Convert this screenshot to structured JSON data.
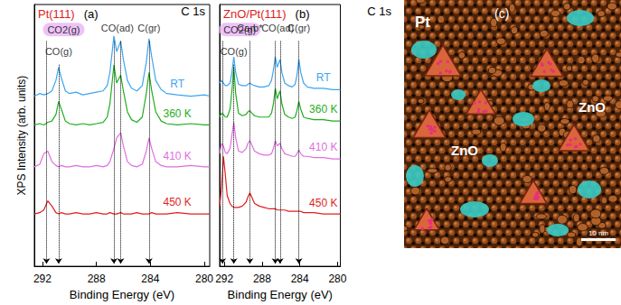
{
  "chart_data": [
    {
      "type": "line",
      "title": "Pt(111)",
      "panel_label": "(a)",
      "corner_label": "C 1s",
      "xlabel": "Binding Energy (eV)",
      "ylabel": "XPS Intensity (arb. units)",
      "xlim": [
        292.6,
        279.6
      ],
      "xticks": [
        292,
        288,
        284,
        280
      ],
      "ylim": [
        0,
        100
      ],
      "tick_labels": "x",
      "grid": false,
      "x": [
        292.6,
        292.2,
        291.9,
        291.6,
        291.3,
        291.0,
        290.8,
        290.6,
        290.3,
        290.0,
        289.5,
        289.0,
        288.5,
        288.0,
        287.5,
        287.2,
        287.0,
        286.7,
        286.5,
        286.2,
        286.0,
        285.7,
        285.4,
        285.0,
        284.6,
        284.3,
        284.1,
        283.9,
        283.6,
        283.2,
        282.8,
        282.0,
        281.0,
        280.0,
        279.6
      ],
      "series": [
        {
          "name": "RT",
          "color": "#3da5f0",
          "values": [
            65,
            66,
            65.5,
            66,
            67,
            71,
            76,
            72,
            67,
            66,
            66.5,
            65.5,
            66,
            66.5,
            67,
            69,
            74,
            88,
            82,
            86,
            79,
            71,
            68,
            67,
            69,
            78,
            87,
            80,
            71,
            67.5,
            66,
            65.5,
            65,
            65.5,
            65
          ]
        },
        {
          "name": "360 K",
          "color": "#1fae1f",
          "values": [
            54,
            54.5,
            54,
            55,
            55.5,
            58,
            63,
            60,
            55.5,
            54.5,
            54,
            54.5,
            54,
            54.5,
            55,
            57,
            62,
            77,
            70,
            73,
            67,
            59,
            56,
            55,
            57,
            66,
            74,
            67,
            59,
            55.5,
            54.5,
            54,
            54.5,
            54,
            54
          ]
        },
        {
          "name": "410 K",
          "color": "#e06ee0",
          "values": [
            38,
            39,
            43,
            44,
            40,
            38.5,
            38,
            38.5,
            38,
            38,
            38.5,
            38,
            38,
            38.5,
            38,
            38.5,
            40,
            45,
            49,
            51,
            46,
            40,
            38.5,
            38,
            39,
            44,
            49,
            45,
            40,
            38.5,
            38,
            38,
            38.5,
            38,
            38
          ]
        },
        {
          "name": "450 K",
          "color": "#e01f1f",
          "values": [
            20,
            20.5,
            21.5,
            25,
            23,
            20.5,
            20,
            20.5,
            20,
            20,
            20.5,
            20,
            20,
            20.5,
            20,
            20,
            20.5,
            20,
            20,
            20.5,
            20,
            20,
            20,
            20.5,
            20,
            20,
            20,
            20.5,
            20,
            20,
            20,
            20.5,
            20,
            20,
            20
          ]
        }
      ],
      "annotations": [
        {
          "text": "CO2(g)",
          "x": [
            291.7
          ],
          "color": "#e8b4f4"
        },
        {
          "text": "CO(g)",
          "x": [
            290.8
          ]
        },
        {
          "text": "CO(ad)",
          "x": [
            286.7,
            286.2
          ]
        },
        {
          "text": "C(gr)",
          "x": [
            284.1
          ]
        }
      ]
    },
    {
      "type": "line",
      "title": "ZnO/Pt(111)",
      "panel_label": "(b)",
      "corner_label": "C 1s",
      "xlabel": "Binding Energy (eV)",
      "xlim": [
        292.5,
        279.7
      ],
      "xticks": [
        292,
        288,
        284,
        280
      ],
      "ylim": [
        0,
        100
      ],
      "tick_labels": "x",
      "grid": false,
      "x": [
        292.5,
        292.3,
        292.1,
        291.9,
        291.7,
        291.4,
        291.2,
        291.0,
        290.8,
        290.5,
        290.1,
        289.7,
        289.5,
        289.3,
        289.1,
        288.8,
        288.3,
        287.8,
        287.3,
        287.0,
        286.8,
        286.6,
        286.4,
        286.1,
        285.9,
        285.6,
        285.2,
        284.8,
        284.5,
        284.3,
        284.1,
        283.9,
        283.6,
        283.2,
        282.5,
        281.5,
        280.5,
        279.7
      ],
      "series": [
        {
          "name": "RT",
          "color": "#3da5f0",
          "values": [
            70,
            71,
            70,
            69,
            69,
            70,
            74,
            80,
            74,
            69.5,
            69,
            69,
            69.5,
            70,
            69.5,
            69,
            68.5,
            68.5,
            69,
            71,
            75,
            80,
            76,
            79,
            74,
            70,
            69,
            68.5,
            69.5,
            73,
            79,
            74,
            70,
            68.5,
            68,
            68,
            67.5,
            67.5
          ]
        },
        {
          "name": "360 K",
          "color": "#1fae1f",
          "values": [
            57,
            58.5,
            58,
            57,
            57,
            60,
            67,
            76,
            66,
            58.5,
            57.5,
            58,
            59,
            59.5,
            58.5,
            57.5,
            57,
            57,
            57,
            58.5,
            62,
            68,
            64,
            67,
            62,
            58,
            57,
            56.5,
            57,
            59.5,
            63,
            60,
            57,
            56.5,
            56,
            56,
            55.5,
            55.5
          ]
        },
        {
          "name": "410 K",
          "color": "#e06ee0",
          "values": [
            43,
            47,
            46,
            43.5,
            43,
            45,
            50,
            55,
            49,
            44,
            43.5,
            45,
            47,
            48,
            46.5,
            44,
            43,
            42.5,
            42.5,
            43,
            45,
            48,
            46,
            47,
            45,
            43,
            42.5,
            42,
            42,
            43,
            44.5,
            43,
            42,
            42,
            41.5,
            41.5,
            41,
            41
          ]
        },
        {
          "name": "450 K",
          "color": "#e01f1f",
          "values": [
            23,
            30,
            42,
            35,
            27,
            24,
            23,
            22.5,
            22.5,
            22.5,
            23,
            24.5,
            26.5,
            28,
            26.5,
            24,
            23,
            22.5,
            22,
            22,
            22,
            22,
            21.5,
            21.5,
            21.5,
            21.5,
            21,
            21,
            21,
            21,
            21,
            21,
            20.5,
            20.5,
            20.5,
            20,
            20,
            20
          ]
        }
      ],
      "annotations": [
        {
          "text": "CO2(g)",
          "x": [
            292.2
          ],
          "color": "#e8b4f4"
        },
        {
          "text": "CO(g)",
          "x": [
            291.0
          ]
        },
        {
          "text": "Carb*",
          "x": [
            289.3
          ]
        },
        {
          "text": "CO(ad)",
          "x": [
            286.6,
            286.1
          ]
        },
        {
          "text": "C(gr)",
          "x": [
            284.1
          ]
        }
      ]
    }
  ],
  "image": {
    "panel_label": "(c)",
    "labels": [
      "Pt",
      "ZnO",
      "ZnO"
    ],
    "scale_bar": "10 nm"
  }
}
